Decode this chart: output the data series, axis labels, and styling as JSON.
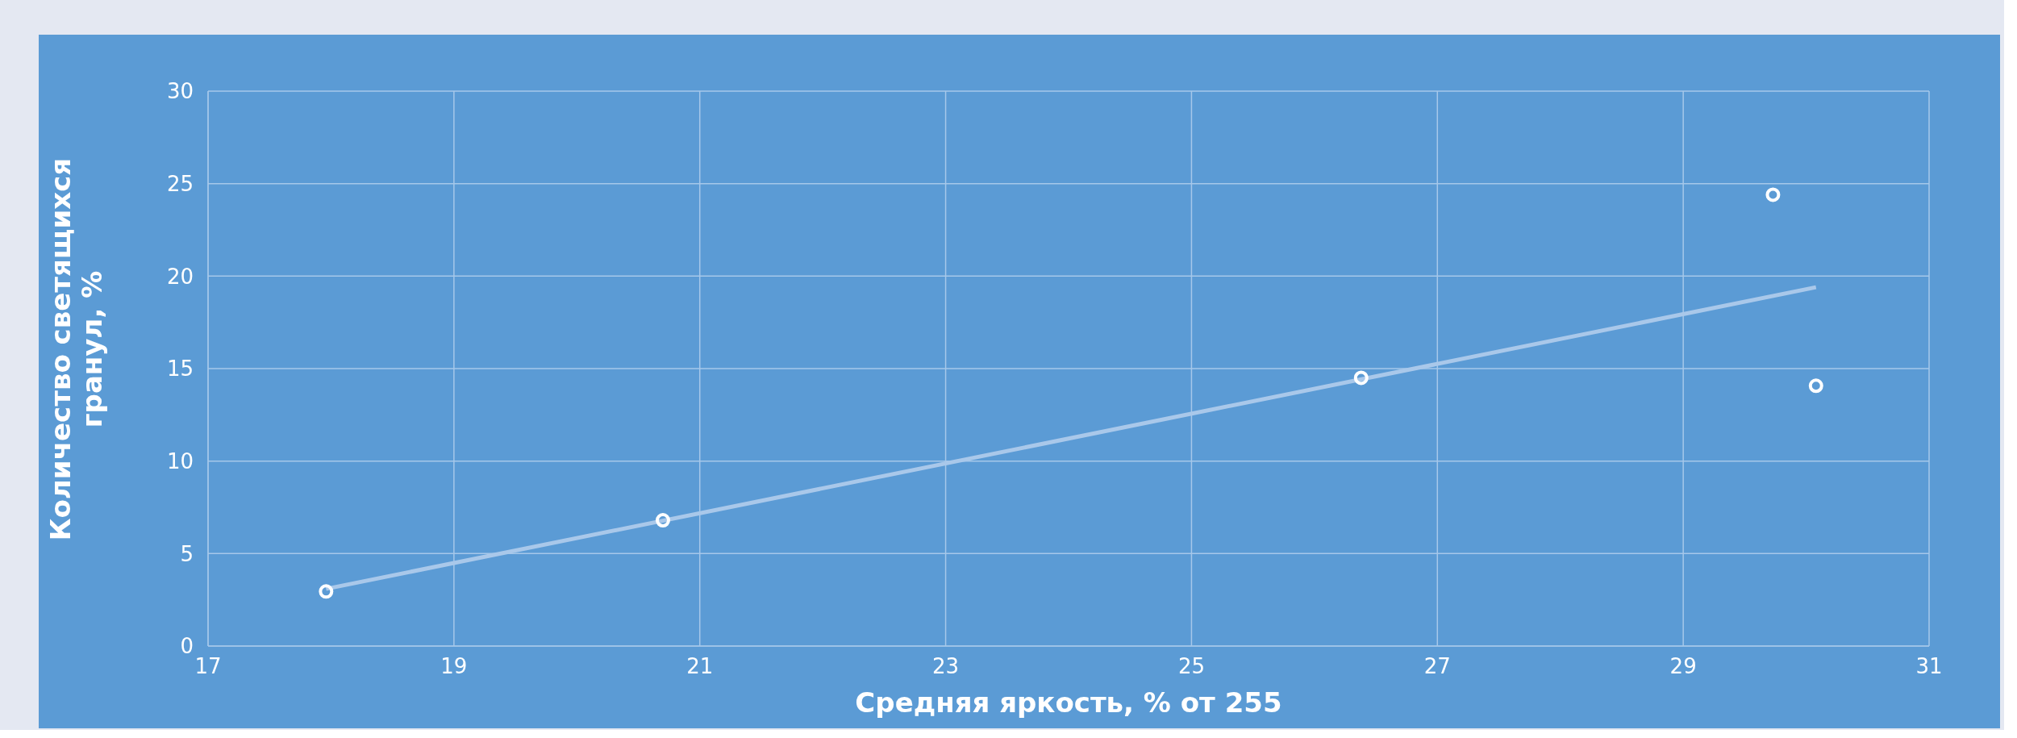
{
  "chart_data": {
    "type": "scatter",
    "xlabel": "Средняя яркость, % от 255",
    "ylabel": "Количество светящихся гранул, %",
    "xlim": [
      17,
      31
    ],
    "xticks": [
      17,
      19,
      21,
      23,
      25,
      27,
      29,
      31
    ],
    "ylim": [
      0,
      30
    ],
    "yticks": [
      0,
      5,
      10,
      15,
      20,
      25,
      30
    ],
    "grid": true,
    "marker": "circle",
    "series": [
      {
        "color": "#ffffff",
        "x": [
          17.96,
          20.7,
          26.38,
          29.73,
          30.08
        ],
        "values": [
          2.95,
          6.8,
          14.5,
          24.4,
          14.07
        ]
      },
      {
        "type": "line",
        "color": "#a9c8ea",
        "line_style": "solid",
        "marker": "none",
        "x": [
          17.96,
          30.08
        ],
        "values": [
          3.09,
          19.4
        ]
      }
    ]
  }
}
